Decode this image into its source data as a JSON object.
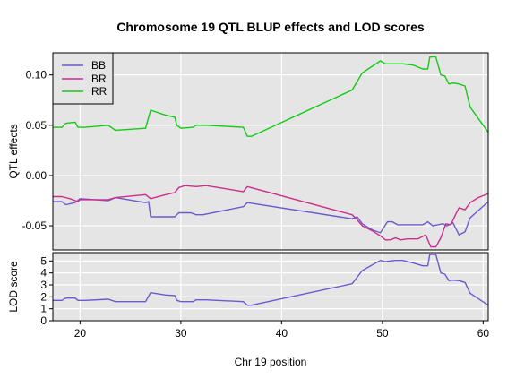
{
  "chart_data": {
    "title": "Chromosome 19 QTL BLUP effects and LOD scores",
    "xlabel": "Chr 19 position",
    "xlim": [
      17.3,
      60.5
    ],
    "x_ticks": [
      20,
      30,
      40,
      50,
      60
    ],
    "panels": [
      {
        "type": "line",
        "ylabel": "QTL effects",
        "ylim": [
          -0.074,
          0.122
        ],
        "y_ticks": [
          0.1,
          0.05,
          0.0,
          -0.05
        ],
        "y_tick_labels": [
          "0.10",
          "0.05",
          "0.00",
          "-0.05"
        ],
        "legend": "top-left",
        "grid": true,
        "series": [
          {
            "name": "BB",
            "color": "#6a5acd",
            "points": [
              [
                17.3,
                -0.026
              ],
              [
                18.2,
                -0.026
              ],
              [
                18.6,
                -0.029
              ],
              [
                19.5,
                -0.027
              ],
              [
                20.0,
                -0.023
              ],
              [
                22.8,
                -0.025
              ],
              [
                23.5,
                -0.022
              ],
              [
                26.5,
                -0.027
              ],
              [
                26.8,
                -0.026
              ],
              [
                27.0,
                -0.041
              ],
              [
                29.4,
                -0.041
              ],
              [
                29.8,
                -0.037
              ],
              [
                31.0,
                -0.037
              ],
              [
                31.5,
                -0.039
              ],
              [
                32.2,
                -0.039
              ],
              [
                36.2,
                -0.031
              ],
              [
                36.6,
                -0.027
              ],
              [
                47.0,
                -0.043
              ],
              [
                47.5,
                -0.041
              ],
              [
                48.0,
                -0.048
              ],
              [
                49.0,
                -0.054
              ],
              [
                49.8,
                -0.057
              ],
              [
                50.5,
                -0.046
              ],
              [
                51.0,
                -0.046
              ],
              [
                51.5,
                -0.049
              ],
              [
                54.0,
                -0.049
              ],
              [
                54.5,
                -0.046
              ],
              [
                55.0,
                -0.05
              ],
              [
                56.0,
                -0.048
              ],
              [
                56.4,
                -0.05
              ],
              [
                57.0,
                -0.047
              ],
              [
                57.6,
                -0.059
              ],
              [
                58.2,
                -0.056
              ],
              [
                58.7,
                -0.042
              ],
              [
                60.5,
                -0.026
              ]
            ]
          },
          {
            "name": "BR",
            "color": "#cd2d8b",
            "points": [
              [
                17.3,
                -0.021
              ],
              [
                18.2,
                -0.021
              ],
              [
                19.0,
                -0.023
              ],
              [
                19.8,
                -0.026
              ],
              [
                20.0,
                -0.024
              ],
              [
                22.8,
                -0.024
              ],
              [
                23.5,
                -0.022
              ],
              [
                26.5,
                -0.019
              ],
              [
                27.0,
                -0.023
              ],
              [
                28.5,
                -0.019
              ],
              [
                29.4,
                -0.017
              ],
              [
                29.8,
                -0.012
              ],
              [
                30.4,
                -0.01
              ],
              [
                31.5,
                -0.011
              ],
              [
                32.5,
                -0.01
              ],
              [
                36.2,
                -0.016
              ],
              [
                36.6,
                -0.011
              ],
              [
                47.0,
                -0.039
              ],
              [
                47.5,
                -0.044
              ],
              [
                48.0,
                -0.05
              ],
              [
                49.0,
                -0.055
              ],
              [
                49.8,
                -0.06
              ],
              [
                50.3,
                -0.064
              ],
              [
                50.8,
                -0.064
              ],
              [
                51.3,
                -0.062
              ],
              [
                51.8,
                -0.064
              ],
              [
                52.5,
                -0.063
              ],
              [
                53.5,
                -0.063
              ],
              [
                54.3,
                -0.059
              ],
              [
                54.8,
                -0.071
              ],
              [
                55.3,
                -0.071
              ],
              [
                55.8,
                -0.062
              ],
              [
                56.3,
                -0.048
              ],
              [
                56.8,
                -0.049
              ],
              [
                57.2,
                -0.04
              ],
              [
                57.6,
                -0.032
              ],
              [
                58.2,
                -0.034
              ],
              [
                58.7,
                -0.027
              ],
              [
                59.5,
                -0.022
              ],
              [
                60.5,
                -0.018
              ]
            ]
          },
          {
            "name": "RR",
            "color": "#11cc11",
            "points": [
              [
                17.3,
                0.048
              ],
              [
                18.2,
                0.048
              ],
              [
                18.6,
                0.052
              ],
              [
                19.5,
                0.053
              ],
              [
                19.8,
                0.048
              ],
              [
                20.5,
                0.048
              ],
              [
                22.8,
                0.05
              ],
              [
                23.5,
                0.045
              ],
              [
                26.5,
                0.047
              ],
              [
                27.0,
                0.065
              ],
              [
                28.5,
                0.06
              ],
              [
                29.4,
                0.058
              ],
              [
                29.6,
                0.05
              ],
              [
                30.0,
                0.047
              ],
              [
                31.2,
                0.048
              ],
              [
                31.5,
                0.05
              ],
              [
                32.5,
                0.05
              ],
              [
                36.2,
                0.048
              ],
              [
                36.6,
                0.039
              ],
              [
                37.0,
                0.039
              ],
              [
                47.0,
                0.085
              ],
              [
                48.0,
                0.102
              ],
              [
                49.8,
                0.114
              ],
              [
                50.3,
                0.111
              ],
              [
                51.3,
                0.111
              ],
              [
                52.0,
                0.111
              ],
              [
                53.0,
                0.11
              ],
              [
                54.0,
                0.106
              ],
              [
                54.5,
                0.106
              ],
              [
                54.7,
                0.118
              ],
              [
                55.3,
                0.118
              ],
              [
                55.8,
                0.1
              ],
              [
                56.2,
                0.099
              ],
              [
                56.6,
                0.091
              ],
              [
                57.0,
                0.092
              ],
              [
                57.6,
                0.091
              ],
              [
                58.2,
                0.089
              ],
              [
                58.7,
                0.068
              ],
              [
                60.5,
                0.043
              ]
            ]
          }
        ]
      },
      {
        "type": "line",
        "ylabel": "LOD score",
        "ylim": [
          0,
          5.7
        ],
        "y_ticks": [
          0,
          1,
          2,
          3,
          4,
          5
        ],
        "y_tick_labels": [
          "0",
          "1",
          "2",
          "3",
          "4",
          "5"
        ],
        "grid": true,
        "series": [
          {
            "color": "#6a5acd",
            "points": [
              [
                17.3,
                1.7
              ],
              [
                18.2,
                1.7
              ],
              [
                18.6,
                1.9
              ],
              [
                19.5,
                1.9
              ],
              [
                19.8,
                1.7
              ],
              [
                20.5,
                1.7
              ],
              [
                22.8,
                1.8
              ],
              [
                23.5,
                1.6
              ],
              [
                26.5,
                1.6
              ],
              [
                27.0,
                2.35
              ],
              [
                28.5,
                2.15
              ],
              [
                29.4,
                2.1
              ],
              [
                29.6,
                1.7
              ],
              [
                30.0,
                1.6
              ],
              [
                31.2,
                1.6
              ],
              [
                31.5,
                1.75
              ],
              [
                32.5,
                1.75
              ],
              [
                36.2,
                1.6
              ],
              [
                36.6,
                1.3
              ],
              [
                37.0,
                1.3
              ],
              [
                47.0,
                3.1
              ],
              [
                48.0,
                4.2
              ],
              [
                49.8,
                5.05
              ],
              [
                50.3,
                4.95
              ],
              [
                51.3,
                5.05
              ],
              [
                52.0,
                5.05
              ],
              [
                53.0,
                4.85
              ],
              [
                54.0,
                4.6
              ],
              [
                54.5,
                4.6
              ],
              [
                54.7,
                5.55
              ],
              [
                55.3,
                5.55
              ],
              [
                55.8,
                4.0
              ],
              [
                56.2,
                3.9
              ],
              [
                56.6,
                3.35
              ],
              [
                57.0,
                3.4
              ],
              [
                57.6,
                3.35
              ],
              [
                58.2,
                3.2
              ],
              [
                58.7,
                2.3
              ],
              [
                60.5,
                1.3
              ]
            ]
          }
        ]
      }
    ]
  }
}
